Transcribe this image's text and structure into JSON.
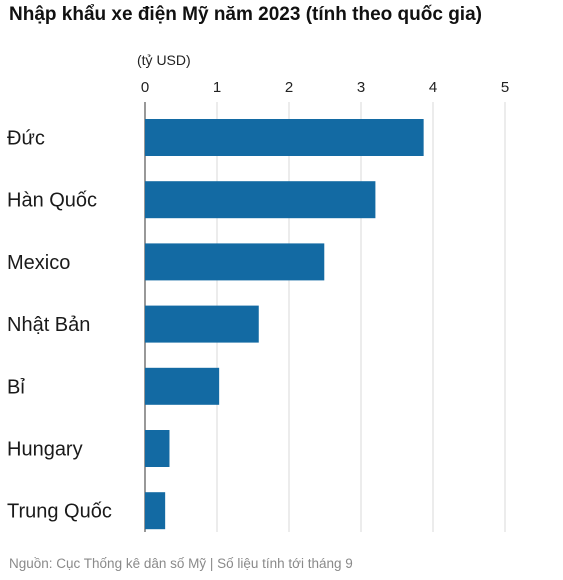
{
  "title": "Nhập khẩu xe điện Mỹ năm 2023 (tính theo quốc gia)",
  "unit_label": "(tỷ USD)",
  "source": "Nguồn: Cục Thống kê dân số Mỹ | Số liệu tính tới tháng 9",
  "colors": {
    "bar": "#136aa3",
    "grid": "#d9d9d9",
    "axis": "#555555"
  },
  "chart_data": {
    "type": "bar",
    "orientation": "horizontal",
    "categories": [
      "Đức",
      "Hàn Quốc",
      "Mexico",
      "Nhật Bản",
      "Bỉ",
      "Hungary",
      "Trung Quốc"
    ],
    "values": [
      3.87,
      3.2,
      2.49,
      1.58,
      1.03,
      0.34,
      0.28
    ],
    "xlim": [
      0,
      5
    ],
    "xticks": [
      0,
      1,
      2,
      3,
      4,
      5
    ],
    "tick_position": "top",
    "grid": true
  }
}
